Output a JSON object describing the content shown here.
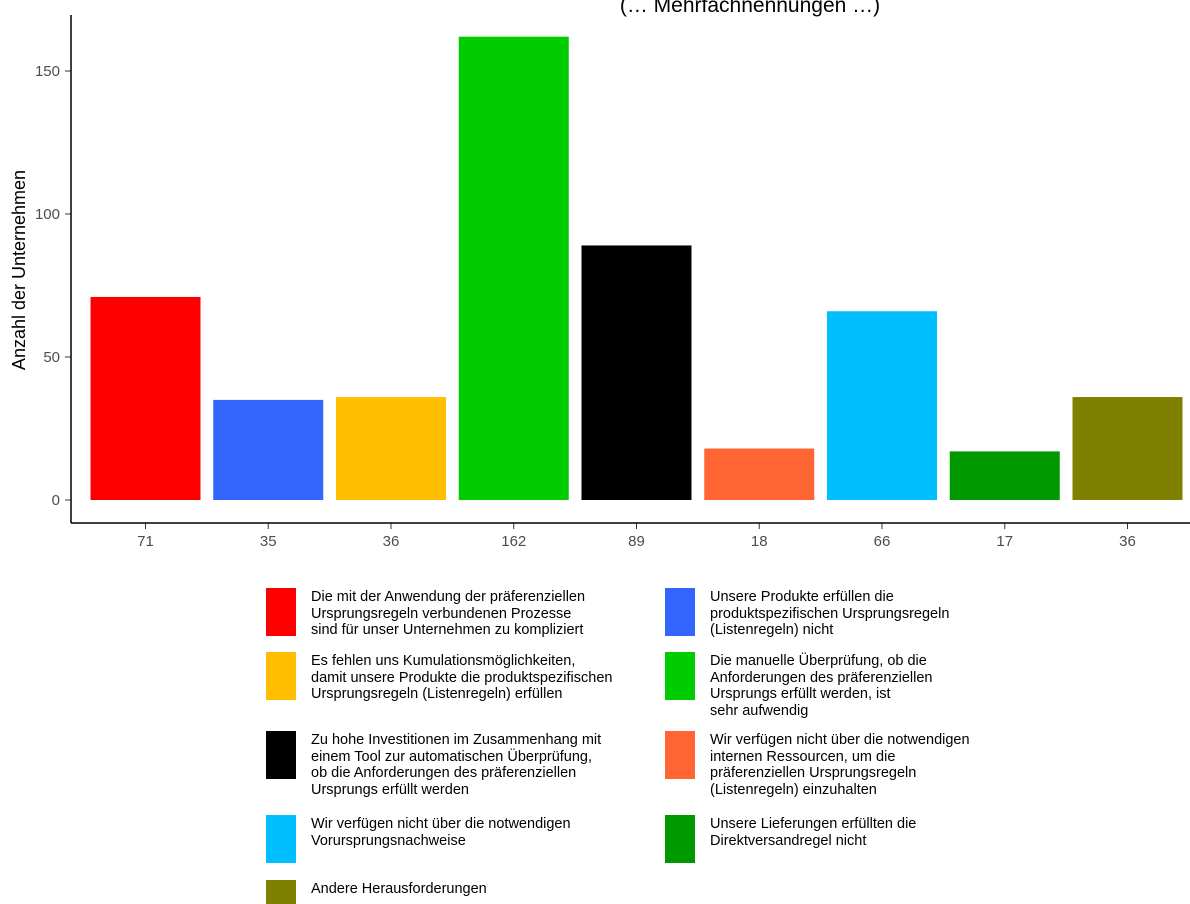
{
  "chart_data": {
    "type": "bar",
    "title": "(… Mehrfachnennungen …)",
    "ylabel": "Anzahl der Unternehmen",
    "xlabel": "",
    "ylim": [
      0,
      165
    ],
    "yticks": [
      0,
      50,
      100,
      150
    ],
    "categories": [
      "71",
      "35",
      "36",
      "162",
      "89",
      "18",
      "66",
      "17",
      "36"
    ],
    "values": [
      71,
      35,
      36,
      162,
      89,
      18,
      66,
      17,
      36
    ],
    "colors": [
      "#ff0000",
      "#3366ff",
      "#ffbf00",
      "#00cc00",
      "#000000",
      "#ff6633",
      "#00bfff",
      "#009900",
      "#808000"
    ],
    "legend": [
      {
        "label": "Die mit der Anwendung der präferenziellen\nUrsprungsregeln verbundenen Prozesse\nsind für unser Unternehmen zu kompliziert",
        "color": "#ff0000"
      },
      {
        "label": "Unsere Produkte erfüllen die\nproduktspezifischen Ursprungsregeln\n(Listenregeln) nicht",
        "color": "#3366ff"
      },
      {
        "label": "Es fehlen uns Kumulationsmöglichkeiten,\ndamit unsere Produkte die produktspezifischen\nUrsprungsregeln (Listenregeln) erfüllen",
        "color": "#ffbf00"
      },
      {
        "label": "Die manuelle Überprüfung, ob die\nAnforderungen des präferenziellen\nUrsprungs erfüllt werden, ist\nsehr aufwendig",
        "color": "#00cc00"
      },
      {
        "label": "Zu hohe Investitionen im Zusammenhang mit\neinem Tool zur automatischen Überprüfung,\nob die Anforderungen des präferenziellen\nUrsprungs erfüllt werden",
        "color": "#000000"
      },
      {
        "label": "Wir verfügen nicht über die notwendigen\ninternen Ressourcen, um die\npräferenziellen Ursprungsregeln\n(Listenregeln) einzuhalten",
        "color": "#ff6633"
      },
      {
        "label": "Wir verfügen nicht über die notwendigen\nVorursprungsnachweise",
        "color": "#00bfff"
      },
      {
        "label": "Unsere Lieferungen erfüllten die\nDirektversandregel nicht",
        "color": "#009900"
      },
      {
        "label": "Andere Herausforderungen",
        "color": "#808000"
      }
    ]
  }
}
